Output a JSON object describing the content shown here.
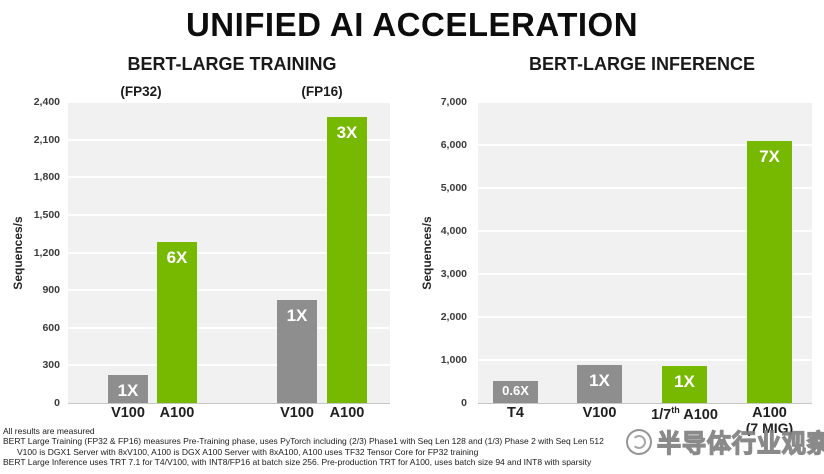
{
  "title": "UNIFIED AI ACCELERATION",
  "colors": {
    "green": "#76B900",
    "gray": "#8E8E8E",
    "plot_bg": "#F1F1F1",
    "grid": "#FFFFFF",
    "text": "#262626"
  },
  "chart_data": [
    {
      "type": "bar",
      "title": "BERT-LARGE TRAINING",
      "group_labels": [
        "(FP32)",
        "(FP16)"
      ],
      "ylabel": "Sequences/s",
      "ylim": [
        0,
        2400
      ],
      "ytick_step": 300,
      "grid": true,
      "bars": [
        {
          "category": "V100",
          "group": "FP32",
          "value": 220,
          "label": "1X",
          "color": "gray"
        },
        {
          "category": "A100",
          "group": "FP32",
          "value": 1280,
          "label": "6X",
          "color": "green"
        },
        {
          "category": "V100",
          "group": "FP16",
          "value": 820,
          "label": "1X",
          "color": "gray"
        },
        {
          "category": "A100",
          "group": "FP16",
          "value": 2280,
          "label": "3X",
          "color": "green"
        }
      ]
    },
    {
      "type": "bar",
      "title": "BERT-LARGE INFERENCE",
      "ylabel": "Sequences/s",
      "ylim": [
        0,
        7000
      ],
      "ytick_step": 1000,
      "grid": true,
      "bars": [
        {
          "category": "T4",
          "value": 520,
          "label": "0.6X",
          "color": "gray"
        },
        {
          "category": "V100",
          "value": 890,
          "label": "1X",
          "color": "gray"
        },
        {
          "category": "1/7th A100",
          "value": 870,
          "label": "1X",
          "color": "green"
        },
        {
          "category": "A100",
          "category_line2": "(7 MIG)",
          "value": 6100,
          "label": "7X",
          "color": "green"
        }
      ]
    }
  ],
  "footnotes": [
    "All results are measured",
    "BERT Large Training (FP32 & FP16) measures Pre-Training phase, uses PyTorch including  (2/3) Phase1 with Seq Len 128 and (1/3) Phase 2 with Seq Len 512",
    "V100 is DGX1 Server with 8xV100, A100 is DGX A100 Server with 8xA100, A100 uses TF32 Tensor Core for FP32 training",
    "BERT Large Inference uses TRT 7.1 for T4/V100, with INT8/FP16 at batch size 256. Pre-production TRT for A100, uses batch size 94 and INT8 with sparsity"
  ],
  "watermark": {
    "logo": "circle-logo",
    "text": "半导体行业观察"
  }
}
